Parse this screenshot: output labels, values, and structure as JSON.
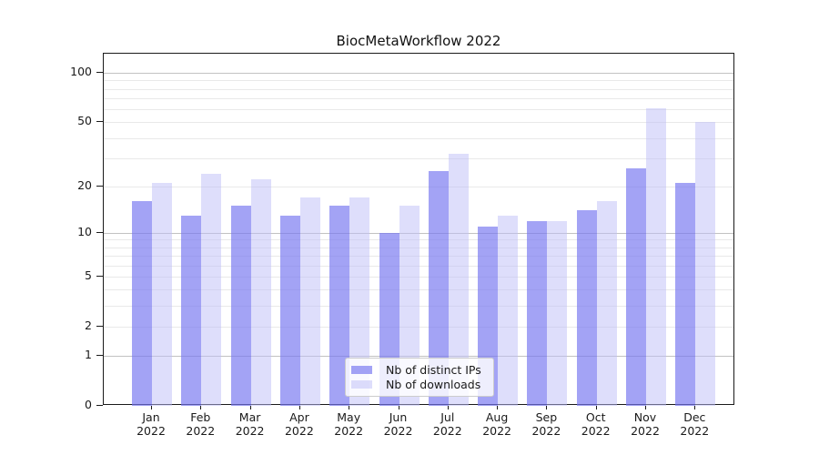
{
  "chart_data": {
    "type": "bar",
    "title": "BiocMetaWorkflow 2022",
    "year": "2022",
    "categories": [
      "Jan",
      "Feb",
      "Mar",
      "Apr",
      "May",
      "Jun",
      "Jul",
      "Aug",
      "Sep",
      "Oct",
      "Nov",
      "Dec"
    ],
    "series": [
      {
        "name": "Nb of distinct IPs",
        "color": "rgba(118,118,240,0.67)",
        "values": [
          16,
          13,
          15,
          13,
          15,
          10,
          25,
          11,
          12,
          14,
          26,
          21
        ]
      },
      {
        "name": "Nb of downloads",
        "color": "rgba(190,190,247,0.5)",
        "values": [
          21,
          24,
          22,
          17,
          17,
          15,
          32,
          13,
          12,
          16,
          61,
          50
        ]
      }
    ],
    "yscale": "log1p",
    "ylim": [
      0,
      130
    ],
    "yticks": [
      100,
      50,
      20,
      10,
      5,
      2,
      1,
      0
    ],
    "grid": {
      "major": [
        1,
        10,
        100
      ],
      "minor": [
        2,
        3,
        4,
        5,
        6,
        7,
        8,
        9,
        20,
        30,
        40,
        50,
        60,
        70,
        80,
        90
      ]
    },
    "legend_position": "lower center",
    "legend_labels": [
      "Nb of distinct IPs",
      "Nb of downloads"
    ]
  }
}
